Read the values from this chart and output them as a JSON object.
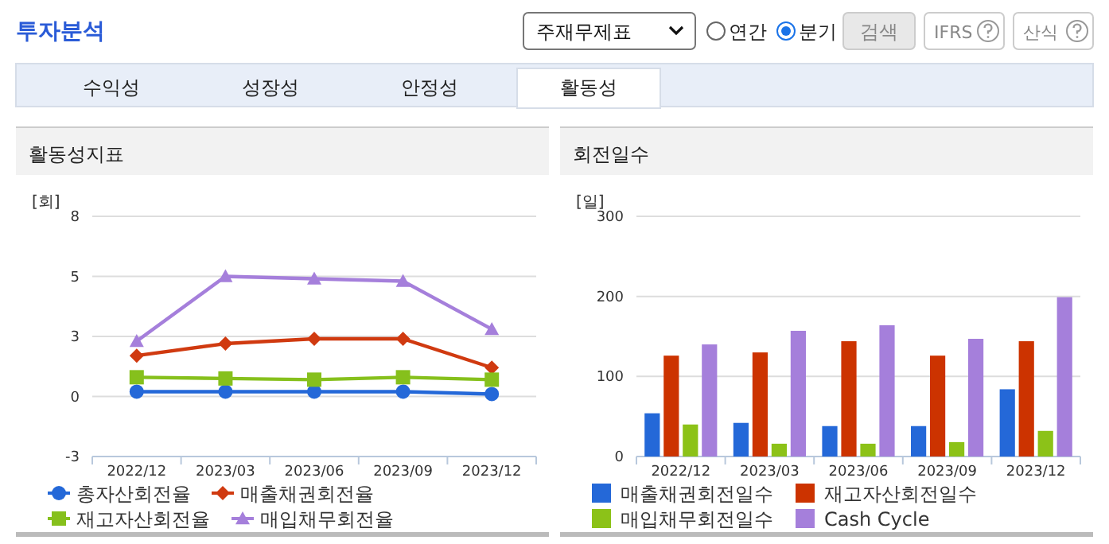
{
  "chart_data": [
    {
      "type": "other",
      "title": "투자분석",
      "annotations": [
        "주재무제표",
        "연간",
        "분기",
        "검색",
        "IFRS",
        "산식",
        "수익성",
        "성장성",
        "안정성",
        "활동성"
      ]
    },
    {
      "type": "line",
      "title": "활동성지표",
      "ylabel": "[회]",
      "categories": [
        "2022/12",
        "2023/03",
        "2023/06",
        "2023/09",
        "2023/12"
      ],
      "ylim": [
        -2.5,
        7.5
      ],
      "yticks": [
        {
          "value": -2.5,
          "label": "-3"
        },
        0,
        {
          "value": 2.5,
          "label": "3"
        },
        5,
        {
          "value": 7.5,
          "label": "8"
        }
      ],
      "grid": "y",
      "legend": "bottom",
      "series": [
        {
          "name": "총자산회전율",
          "color": "#2468d8",
          "marker": "circle",
          "values": [
            0.2,
            0.2,
            0.2,
            0.2,
            0.1
          ]
        },
        {
          "name": "매출채권회전율",
          "color": "#d03a10",
          "marker": "diamond",
          "values": [
            1.7,
            2.2,
            2.4,
            2.4,
            1.2
          ]
        },
        {
          "name": "재고자산회전율",
          "color": "#86c01c",
          "marker": "square",
          "values": [
            0.8,
            0.75,
            0.7,
            0.8,
            0.7
          ]
        },
        {
          "name": "매입채무회전율",
          "color": "#a57fdb",
          "marker": "triangle",
          "values": [
            2.3,
            5.0,
            4.9,
            4.8,
            2.8
          ]
        }
      ]
    },
    {
      "type": "bar",
      "title": "회전일수",
      "ylabel": "[일]",
      "categories": [
        "2022/12",
        "2023/03",
        "2023/06",
        "2023/09",
        "2023/12"
      ],
      "ylim": [
        0,
        300
      ],
      "yticks": [
        0,
        100,
        200,
        300
      ],
      "grid": "y",
      "legend": "bottom",
      "series": [
        {
          "name": "매출채권회전일수",
          "color": "#2468d8",
          "values": [
            54,
            42,
            38,
            38,
            84
          ]
        },
        {
          "name": "재고자산회전일수",
          "color": "#cc3300",
          "values": [
            126,
            130,
            144,
            126,
            144
          ]
        },
        {
          "name": "매입채무회전일수",
          "color": "#8cc218",
          "values": [
            40,
            16,
            16,
            18,
            32
          ]
        },
        {
          "name": "Cash Cycle",
          "color": "#a57fdb",
          "values": [
            140,
            157,
            164,
            147,
            199
          ]
        }
      ]
    }
  ]
}
